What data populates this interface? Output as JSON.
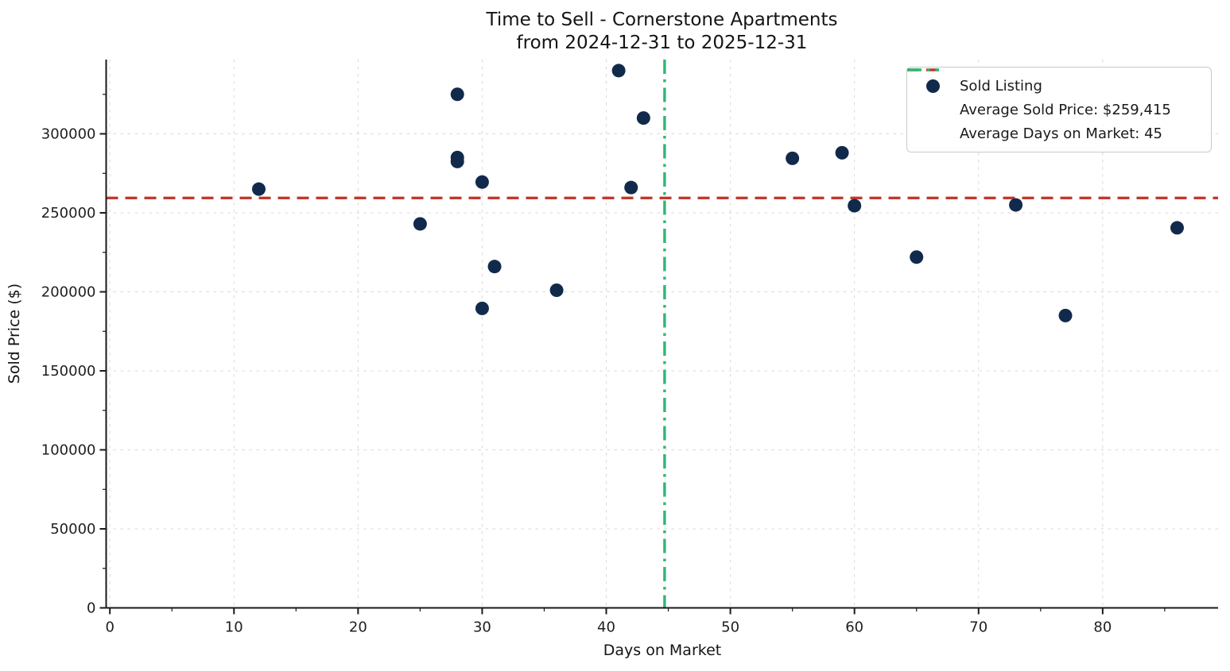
{
  "chart_data": {
    "type": "scatter",
    "title": "Time to Sell - Cornerstone Apartments",
    "subtitle": "from 2024-12-31 to 2025-12-31",
    "xlabel": "Days on Market",
    "ylabel": "Sold Price ($)",
    "axes": {
      "xlim": [
        -0.3,
        89.3
      ],
      "ylim": [
        0,
        347000
      ],
      "x_ticks": [
        0,
        10,
        20,
        30,
        40,
        50,
        60,
        70,
        80
      ],
      "x_minor_ticks": [
        5,
        15,
        25,
        35,
        45,
        55,
        65,
        75,
        85
      ],
      "y_ticks": [
        0,
        50000,
        100000,
        150000,
        200000,
        250000,
        300000
      ],
      "y_minor_ticks": [
        25000,
        75000,
        125000,
        175000,
        225000,
        275000,
        325000
      ],
      "grid": "major-dashed"
    },
    "series": [
      {
        "name": "Sold Listing",
        "type": "scatter",
        "color": "#112a4c",
        "points": [
          {
            "days_on_market": 12,
            "sold_price": 265000
          },
          {
            "days_on_market": 25,
            "sold_price": 243000
          },
          {
            "days_on_market": 28,
            "sold_price": 325000
          },
          {
            "days_on_market": 28,
            "sold_price": 285000
          },
          {
            "days_on_market": 28,
            "sold_price": 282500
          },
          {
            "days_on_market": 30,
            "sold_price": 269500
          },
          {
            "days_on_market": 30,
            "sold_price": 189500
          },
          {
            "days_on_market": 31,
            "sold_price": 216000
          },
          {
            "days_on_market": 36,
            "sold_price": 201000
          },
          {
            "days_on_market": 41,
            "sold_price": 340000
          },
          {
            "days_on_market": 42,
            "sold_price": 266000
          },
          {
            "days_on_market": 43,
            "sold_price": 310000
          },
          {
            "days_on_market": 55,
            "sold_price": 284500
          },
          {
            "days_on_market": 59,
            "sold_price": 288000
          },
          {
            "days_on_market": 60,
            "sold_price": 254500
          },
          {
            "days_on_market": 65,
            "sold_price": 222000
          },
          {
            "days_on_market": 73,
            "sold_price": 255000
          },
          {
            "days_on_market": 77,
            "sold_price": 185000
          },
          {
            "days_on_market": 86,
            "sold_price": 240500
          }
        ]
      }
    ],
    "reference_lines": [
      {
        "name": "average-sold-price",
        "orientation": "horizontal",
        "value": 259415,
        "style": "dashed",
        "color": "#c0392b"
      },
      {
        "name": "average-days-on-market",
        "orientation": "vertical",
        "value": 44.7,
        "style": "dashdot",
        "color": "#2db872"
      }
    ],
    "legend": {
      "position": "upper right",
      "items": [
        {
          "label": "Sold Listing",
          "marker": "dot",
          "color": "#112a4c"
        },
        {
          "label": "Average Sold Price: $259,415",
          "marker": "dashed-line",
          "color": "#c0392b"
        },
        {
          "label": "Average Days on Market: 45",
          "marker": "dashdot-line",
          "color": "#2db872"
        }
      ]
    }
  }
}
